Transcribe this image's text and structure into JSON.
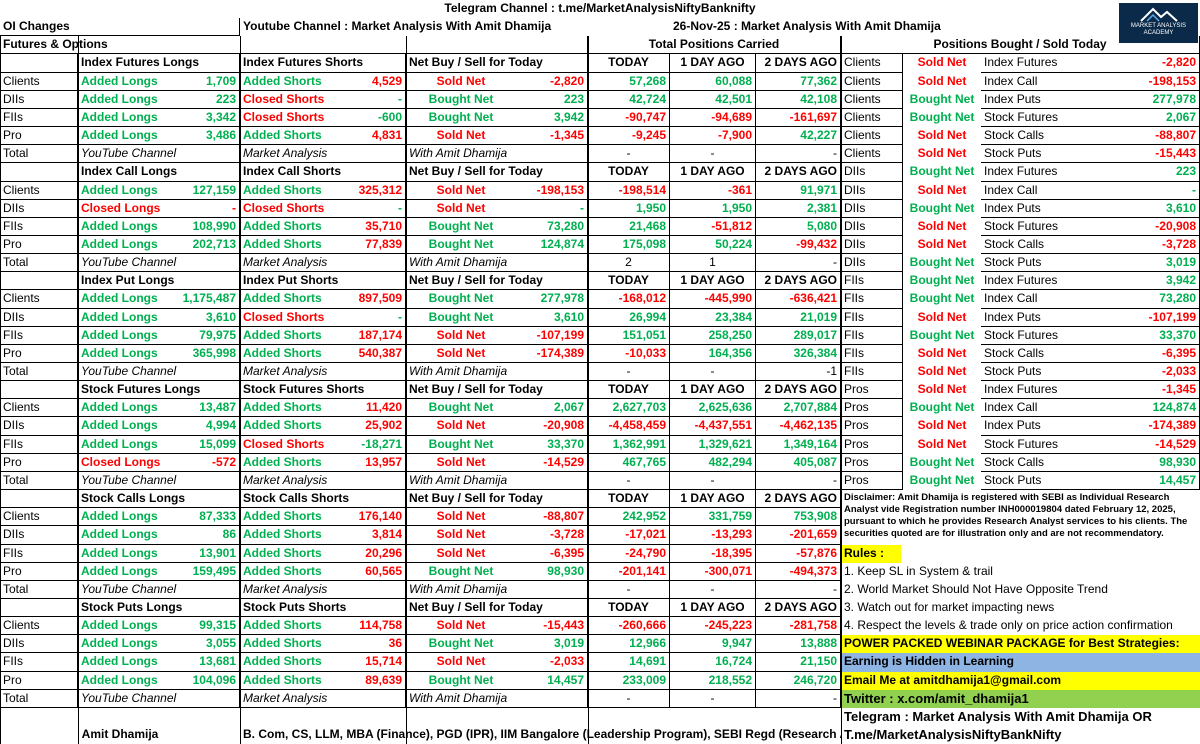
{
  "header": {
    "telegram": "Telegram Channel : t.me/MarketAnalysisNiftyBanknifty",
    "oi_changes": "OI Changes",
    "youtube": "Youtube Channel : Market Analysis With Amit Dhamija",
    "date": "26-Nov-25 : Market Analysis With Amit Dhamija",
    "fo": "Futures & Options",
    "total_positions": "Total Positions Carried",
    "positions_today": "Positions Bought / Sold Today",
    "logo_line1": "MARKET ANALYSIS",
    "logo_line2": "ACADEMY"
  },
  "columns": {
    "today": "TODAY",
    "day1": "1 DAY AGO",
    "day2": "2 DAYS AGO"
  },
  "sections": [
    {
      "hdr": [
        "Index Futures Longs",
        "Index Futures Shorts",
        "Net Buy / Sell for Today"
      ],
      "rows": [
        [
          "Clients",
          "Added Longs",
          "1,709",
          "Added Shorts",
          "4,529",
          "Sold Net",
          "-2,820",
          "57,268",
          "60,088",
          "77,362"
        ],
        [
          "DIIs",
          "Added Longs",
          "223",
          "Closed Shorts",
          "-",
          "Bought Net",
          "223",
          "42,724",
          "42,501",
          "42,108"
        ],
        [
          "FIIs",
          "Added Longs",
          "3,342",
          "Closed Shorts",
          "-600",
          "Bought Net",
          "3,942",
          "-90,747",
          "-94,689",
          "-161,697"
        ],
        [
          "Pro",
          "Added Longs",
          "3,486",
          "Added Shorts",
          "4,831",
          "Sold Net",
          "-1,345",
          "-9,245",
          "-7,900",
          "42,227"
        ]
      ],
      "total": [
        "Total",
        "YouTube Channel",
        "Market Analysis",
        "With Amit Dhamija",
        "-",
        "-",
        "-"
      ]
    },
    {
      "hdr": [
        "Index Call Longs",
        "Index Call Shorts",
        "Net Buy / Sell for Today"
      ],
      "rows": [
        [
          "Clients",
          "Added Longs",
          "127,159",
          "Added Shorts",
          "325,312",
          "Sold Net",
          "-198,153",
          "-198,514",
          "-361",
          "91,971"
        ],
        [
          "DIIs",
          "Closed Longs",
          "-",
          "Closed Shorts",
          "-",
          "Sold Net",
          "-",
          "1,950",
          "1,950",
          "2,381"
        ],
        [
          "FIIs",
          "Added Longs",
          "108,990",
          "Added Shorts",
          "35,710",
          "Bought Net",
          "73,280",
          "21,468",
          "-51,812",
          "5,080"
        ],
        [
          "Pro",
          "Added Longs",
          "202,713",
          "Added Shorts",
          "77,839",
          "Bought Net",
          "124,874",
          "175,098",
          "50,224",
          "-99,432"
        ]
      ],
      "total": [
        "Total",
        "YouTube Channel",
        "Market Analysis",
        "With Amit Dhamija",
        "2",
        "1",
        "-"
      ]
    },
    {
      "hdr": [
        "Index Put Longs",
        "Index Put Shorts",
        "Net Buy / Sell for Today"
      ],
      "rows": [
        [
          "Clients",
          "Added Longs",
          "1,175,487",
          "Added Shorts",
          "897,509",
          "Bought Net",
          "277,978",
          "-168,012",
          "-445,990",
          "-636,421"
        ],
        [
          "DIIs",
          "Added Longs",
          "3,610",
          "Closed Shorts",
          "-",
          "Bought Net",
          "3,610",
          "26,994",
          "23,384",
          "21,019"
        ],
        [
          "FIIs",
          "Added Longs",
          "79,975",
          "Added Shorts",
          "187,174",
          "Sold Net",
          "-107,199",
          "151,051",
          "258,250",
          "289,017"
        ],
        [
          "Pro",
          "Added Longs",
          "365,998",
          "Added Shorts",
          "540,387",
          "Sold Net",
          "-174,389",
          "-10,033",
          "164,356",
          "326,384"
        ]
      ],
      "total": [
        "Total",
        "YouTube Channel",
        "Market Analysis",
        "With Amit Dhamija",
        "-",
        "-",
        "-1"
      ]
    },
    {
      "hdr": [
        "Stock Futures Longs",
        "Stock Futures Shorts",
        "Net Buy / Sell for Today"
      ],
      "rows": [
        [
          "Clients",
          "Added Longs",
          "13,487",
          "Added Shorts",
          "11,420",
          "Bought Net",
          "2,067",
          "2,627,703",
          "2,625,636",
          "2,707,884"
        ],
        [
          "DIIs",
          "Added Longs",
          "4,994",
          "Added Shorts",
          "25,902",
          "Sold Net",
          "-20,908",
          "-4,458,459",
          "-4,437,551",
          "-4,462,135"
        ],
        [
          "FIIs",
          "Added Longs",
          "15,099",
          "Closed Shorts",
          "-18,271",
          "Bought Net",
          "33,370",
          "1,362,991",
          "1,329,621",
          "1,349,164"
        ],
        [
          "Pro",
          "Closed Longs",
          "-572",
          "Added Shorts",
          "13,957",
          "Sold Net",
          "-14,529",
          "467,765",
          "482,294",
          "405,087"
        ]
      ],
      "total": [
        "Total",
        "YouTube Channel",
        "Market Analysis",
        "With Amit Dhamija",
        "-",
        "-",
        "-"
      ]
    },
    {
      "hdr": [
        "Stock Calls Longs",
        "Stock Calls Shorts",
        "Net Buy / Sell for Today"
      ],
      "rows": [
        [
          "Clients",
          "Added Longs",
          "87,333",
          "Added Shorts",
          "176,140",
          "Sold Net",
          "-88,807",
          "242,952",
          "331,759",
          "753,908"
        ],
        [
          "DIIs",
          "Added Longs",
          "86",
          "Added Shorts",
          "3,814",
          "Sold Net",
          "-3,728",
          "-17,021",
          "-13,293",
          "-201,659"
        ],
        [
          "FIIs",
          "Added Longs",
          "13,901",
          "Added Shorts",
          "20,296",
          "Sold Net",
          "-6,395",
          "-24,790",
          "-18,395",
          "-57,876"
        ],
        [
          "Pro",
          "Added Longs",
          "159,495",
          "Added Shorts",
          "60,565",
          "Bought Net",
          "98,930",
          "-201,141",
          "-300,071",
          "-494,373"
        ]
      ],
      "total": [
        "Total",
        "YouTube Channel",
        "Market Analysis",
        "With Amit Dhamija",
        "-",
        "-",
        "-"
      ]
    },
    {
      "hdr": [
        "Stock Puts Longs",
        "Stock Puts Shorts",
        "Net Buy / Sell for Today"
      ],
      "rows": [
        [
          "Clients",
          "Added Longs",
          "99,315",
          "Added Shorts",
          "114,758",
          "Sold Net",
          "-15,443",
          "-260,666",
          "-245,223",
          "-281,758"
        ],
        [
          "DIIs",
          "Added Longs",
          "3,055",
          "Added Shorts",
          "36",
          "Bought Net",
          "3,019",
          "12,966",
          "9,947",
          "13,888"
        ],
        [
          "FIIs",
          "Added Longs",
          "13,681",
          "Added Shorts",
          "15,714",
          "Sold Net",
          "-2,033",
          "14,691",
          "16,724",
          "21,150"
        ],
        [
          "Pro",
          "Added Longs",
          "104,096",
          "Added Shorts",
          "89,639",
          "Bought Net",
          "14,457",
          "233,009",
          "218,552",
          "246,720"
        ]
      ],
      "total": [
        "Total",
        "YouTube Channel",
        "Market Analysis",
        "With Amit Dhamija",
        "-",
        "-",
        "-"
      ]
    }
  ],
  "summary": [
    [
      "Clients",
      "Sold Net",
      "Index Futures",
      "-2,820"
    ],
    [
      "Clients",
      "Sold Net",
      "Index Call",
      "-198,153"
    ],
    [
      "Clients",
      "Bought Net",
      "Index Puts",
      "277,978"
    ],
    [
      "Clients",
      "Bought Net",
      "Stock Futures",
      "2,067"
    ],
    [
      "Clients",
      "Sold Net",
      "Stock Calls",
      "-88,807"
    ],
    [
      "Clients",
      "Sold Net",
      "Stock Puts",
      "-15,443"
    ],
    [
      "DIIs",
      "Bought Net",
      "Index Futures",
      "223"
    ],
    [
      "DIIs",
      "Sold Net",
      "Index Call",
      "-"
    ],
    [
      "DIIs",
      "Bought Net",
      "Index Puts",
      "3,610"
    ],
    [
      "DIIs",
      "Sold Net",
      "Stock Futures",
      "-20,908"
    ],
    [
      "DIIs",
      "Sold Net",
      "Stock Calls",
      "-3,728"
    ],
    [
      "DIIs",
      "Bought Net",
      "Stock Puts",
      "3,019"
    ],
    [
      "FIIs",
      "Bought Net",
      "Index Futures",
      "3,942"
    ],
    [
      "FIIs",
      "Bought Net",
      "Index Call",
      "73,280"
    ],
    [
      "FIIs",
      "Sold Net",
      "Index Puts",
      "-107,199"
    ],
    [
      "FIIs",
      "Bought Net",
      "Stock Futures",
      "33,370"
    ],
    [
      "FIIs",
      "Sold Net",
      "Stock Calls",
      "-6,395"
    ],
    [
      "FIIs",
      "Sold Net",
      "Stock Puts",
      "-2,033"
    ],
    [
      "Pros",
      "Sold Net",
      "Index Futures",
      "-1,345"
    ],
    [
      "Pros",
      "Bought Net",
      "Index Call",
      "124,874"
    ],
    [
      "Pros",
      "Sold Net",
      "Index Puts",
      "-174,389"
    ],
    [
      "Pros",
      "Sold Net",
      "Stock Futures",
      "-14,529"
    ],
    [
      "Pros",
      "Bought Net",
      "Stock Calls",
      "98,930"
    ],
    [
      "Pros",
      "Bought Net",
      "Stock Puts",
      "14,457"
    ]
  ],
  "disclaimer": "Disclaimer: Amit Dhamija is registered with SEBI as Individual Research Analyst vide Registration number INH000019804 dated February 12, 2025, pursuant to which he provides Research Analyst services to his clients. The securities quoted are for illustration only and are not recommendatory.",
  "rules": {
    "title": "Rules :",
    "items": [
      "1. Keep SL in System & trail",
      "2. World Market Should Not Have Opposite Trend",
      "3. Watch out for market impacting news",
      "4. Respect the levels & trade only on price action confirmation"
    ]
  },
  "promo": {
    "webinar": "POWER PACKED WEBINAR PACKAGE for Best Strategies:",
    "learning": "Earning is Hidden in Learning",
    "email": "Email Me at amitdhamija1@gmail.com",
    "twitter": "Twitter : x.com/amit_dhamija1",
    "telegram": "Telegram : Market Analysis With Amit Dhamija OR",
    "telegram_link": "T.me/MarketAnalysisNiftyBankNifty"
  },
  "footer": {
    "name": "Amit Dhamija",
    "credentials": "B. Com, CS, LLM, MBA (Finance), PGD (IPR), IIM Bangalore (Leadership Program), SEBI Regd (Research Analyst)"
  },
  "colors": {
    "positive": "#00b050",
    "negative": "#ff0000",
    "highlight": "#ffff00",
    "note_blue": "#8eb4e3",
    "note_green": "#92d050"
  }
}
